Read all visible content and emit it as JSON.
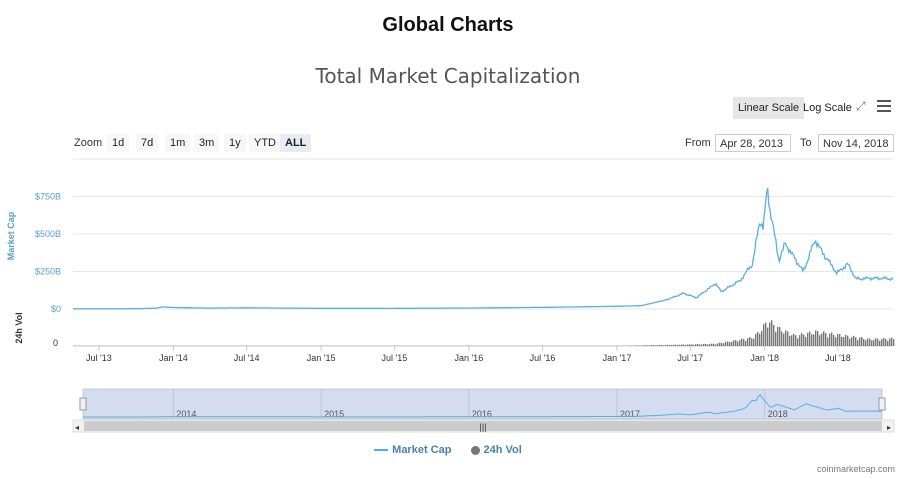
{
  "page": {
    "title": "Global Charts",
    "credit": "coinmarketcap.com"
  },
  "chart": {
    "title": "Total Market Capitalization",
    "scale_buttons": {
      "linear": "Linear Scale",
      "log": "Log Scale"
    },
    "zoom": {
      "label": "Zoom",
      "buttons": [
        "1d",
        "7d",
        "1m",
        "3m",
        "1y",
        "YTD",
        "ALL"
      ],
      "active": "ALL"
    },
    "range": {
      "from_label": "From",
      "from_value": "Apr 28, 2013",
      "to_label": "To",
      "to_value": "Nov 14, 2018"
    },
    "colors": {
      "market_cap": "#5aafe0",
      "volume": "#777777",
      "navigator_bg": "#d4dcf0",
      "axis_text": "#5aa0cc"
    }
  },
  "chart_data": {
    "type": "line",
    "x_axis": {
      "ticks": [
        "Jul '13",
        "Jan '14",
        "Jul '14",
        "Jan '15",
        "Jul '15",
        "Jan '16",
        "Jul '16",
        "Jan '17",
        "Jul '17",
        "Jan '18",
        "Jul '18"
      ]
    },
    "y_axis": {
      "label": "Market Cap",
      "ticks": [
        "$0",
        "$250B",
        "$500B",
        "$750B"
      ],
      "range_billion": [
        0,
        900
      ]
    },
    "volume_axis": {
      "label": "24h Vol",
      "ticks": [
        "0"
      ]
    },
    "navigator": {
      "labels": [
        "2014",
        "2015",
        "2016",
        "2017",
        "2018"
      ]
    },
    "legend": [
      "Market Cap",
      "24h Vol"
    ],
    "series": [
      {
        "name": "Market Cap",
        "unit": "billion USD",
        "points": [
          [
            "2013-04-28",
            1.5
          ],
          [
            "2013-07-01",
            1.1
          ],
          [
            "2013-10-01",
            1.8
          ],
          [
            "2013-11-20",
            6
          ],
          [
            "2013-12-04",
            14
          ],
          [
            "2014-01-01",
            10
          ],
          [
            "2014-04-01",
            6
          ],
          [
            "2014-07-01",
            8
          ],
          [
            "2015-01-01",
            4.5
          ],
          [
            "2015-07-01",
            4.3
          ],
          [
            "2016-01-01",
            6.5
          ],
          [
            "2016-07-01",
            11
          ],
          [
            "2017-01-01",
            18
          ],
          [
            "2017-03-01",
            22
          ],
          [
            "2017-05-01",
            60
          ],
          [
            "2017-06-15",
            105
          ],
          [
            "2017-07-15",
            75
          ],
          [
            "2017-09-01",
            170
          ],
          [
            "2017-09-15",
            115
          ],
          [
            "2017-11-01",
            190
          ],
          [
            "2017-12-01",
            300
          ],
          [
            "2017-12-20",
            590
          ],
          [
            "2017-12-28",
            540
          ],
          [
            "2018-01-07",
            813
          ],
          [
            "2018-01-15",
            640
          ],
          [
            "2018-02-05",
            320
          ],
          [
            "2018-02-20",
            440
          ],
          [
            "2018-03-15",
            340
          ],
          [
            "2018-04-06",
            250
          ],
          [
            "2018-05-05",
            460
          ],
          [
            "2018-05-20",
            390
          ],
          [
            "2018-06-28",
            240
          ],
          [
            "2018-07-25",
            300
          ],
          [
            "2018-08-14",
            200
          ],
          [
            "2018-09-15",
            205
          ],
          [
            "2018-10-15",
            205
          ],
          [
            "2018-11-14",
            200
          ]
        ]
      },
      {
        "name": "24h Vol",
        "unit": "billion USD",
        "points": [
          [
            "2013-04-28",
            0.02
          ],
          [
            "2014-01-01",
            0.1
          ],
          [
            "2015-01-01",
            0.05
          ],
          [
            "2016-01-01",
            0.1
          ],
          [
            "2017-01-01",
            0.3
          ],
          [
            "2017-06-15",
            2.5
          ],
          [
            "2017-09-01",
            4
          ],
          [
            "2017-12-01",
            15
          ],
          [
            "2017-12-20",
            28
          ],
          [
            "2018-01-07",
            45
          ],
          [
            "2018-02-05",
            30
          ],
          [
            "2018-03-15",
            18
          ],
          [
            "2018-05-05",
            25
          ],
          [
            "2018-07-25",
            17
          ],
          [
            "2018-09-15",
            12
          ],
          [
            "2018-11-14",
            13
          ]
        ]
      }
    ]
  }
}
